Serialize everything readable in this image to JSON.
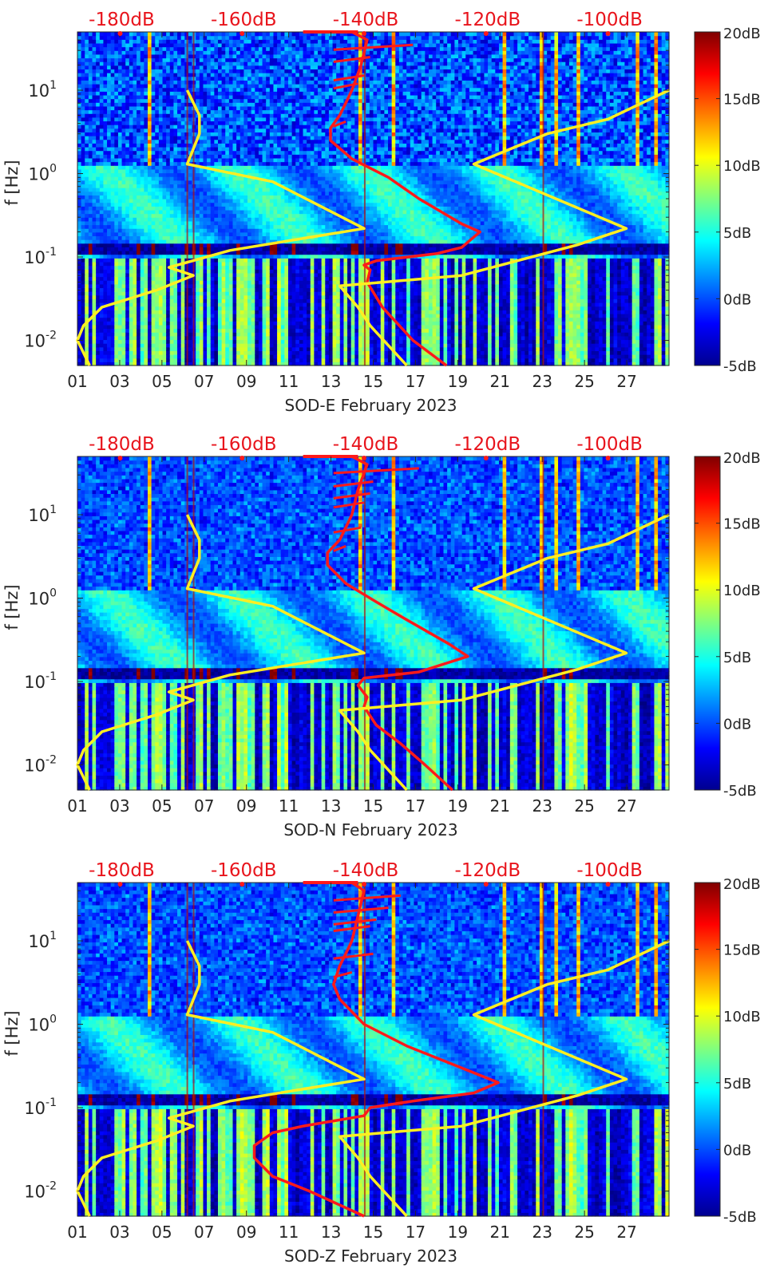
{
  "figure": {
    "colors": {
      "psd_curve": "#ff1a1a",
      "noise_model": "#ffee22",
      "top_axis_text": "#e8141c",
      "axis_text": "#262626"
    },
    "colorbar": {
      "ticks": [
        "20dB",
        "15dB",
        "10dB",
        "5dB",
        "0dB",
        "-5dB"
      ],
      "range": [
        -5,
        20
      ],
      "colormap": "jet"
    }
  },
  "chart_data": [
    {
      "type": "heatmap",
      "xlabel": "SOD-E February 2023",
      "ylabel": "f [Hz]",
      "x_ticks": [
        "01",
        "03",
        "05",
        "07",
        "09",
        "11",
        "13",
        "15",
        "17",
        "19",
        "21",
        "23",
        "25",
        "27"
      ],
      "y_ticks": [
        {
          "base": "10",
          "exp": "1"
        },
        {
          "base": "10",
          "exp": "0"
        },
        {
          "base": "10",
          "exp": "-1"
        },
        {
          "base": "10",
          "exp": "-2"
        }
      ],
      "top_ticks": [
        "-180dB",
        "-160dB",
        "-140dB",
        "-120dB",
        "-100dB"
      ],
      "colorbar_ticks": [
        "20dB",
        "15dB",
        "10dB",
        "5dB",
        "0dB",
        "-5dB"
      ],
      "x_range_days": [
        1,
        29
      ],
      "y_range_hz": [
        0.005,
        50
      ],
      "y_scale": "log",
      "top_range_db": [
        -187,
        -90
      ],
      "colorbar_range_db": [
        -5,
        20
      ],
      "series": [
        {
          "type": "line",
          "role": "psd",
          "color": "#ff1a1a",
          "points_db_hz": [
            [
              -126.5,
              0.005
            ],
            [
              -132,
              0.01
            ],
            [
              -137,
              0.025
            ],
            [
              -139.5,
              0.05
            ],
            [
              -139,
              0.07
            ],
            [
              -140,
              0.08
            ],
            [
              -138,
              0.09
            ],
            [
              -128,
              0.11
            ],
            [
              -124,
              0.13
            ],
            [
              -121,
              0.2
            ],
            [
              -124,
              0.25
            ],
            [
              -131,
              0.5
            ],
            [
              -136,
              0.9
            ],
            [
              -142,
              1.5
            ],
            [
              -145.5,
              2.5
            ],
            [
              -145.5,
              3.5
            ],
            [
              -144,
              5
            ],
            [
              -143,
              7
            ],
            [
              -142,
              10
            ],
            [
              -140.5,
              20
            ],
            [
              -139.5,
              40
            ],
            [
              -142,
              50
            ]
          ],
          "spikes_db_hz": [
            [
              -132,
              35
            ],
            [
              -139,
              25
            ],
            [
              -140,
              15
            ],
            [
              -141,
              12
            ],
            [
              -143,
              4.2
            ]
          ]
        },
        {
          "type": "line",
          "role": "noise-model",
          "color": "#ffee22",
          "points_db_hz": [
            [
              -185,
              0.005
            ],
            [
              -187,
              0.01
            ],
            [
              -186,
              0.015
            ],
            [
              -183,
              0.025
            ],
            [
              -174,
              0.04
            ],
            [
              -168,
              0.06
            ],
            [
              -172,
              0.075
            ],
            [
              -162,
              0.12
            ],
            [
              -140,
              0.22
            ],
            [
              -155,
              0.8
            ],
            [
              -169,
              1.3
            ],
            [
              -167,
              3
            ],
            [
              -167,
              5
            ],
            [
              -169,
              10
            ]
          ],
          "right_points_db_hz": [
            [
              -133,
              0.005
            ],
            [
              -139,
              0.015
            ],
            [
              -141,
              0.025
            ],
            [
              -144,
              0.045
            ],
            [
              -124,
              0.06
            ],
            [
              -105,
              0.14
            ],
            [
              -97,
              0.22
            ],
            [
              -122,
              1.3
            ],
            [
              -110,
              3
            ],
            [
              -100,
              4.5
            ],
            [
              -90,
              10
            ]
          ]
        }
      ]
    },
    {
      "type": "heatmap",
      "xlabel": "SOD-N February 2023",
      "ylabel": "f [Hz]",
      "x_ticks": [
        "01",
        "03",
        "05",
        "07",
        "09",
        "11",
        "13",
        "15",
        "17",
        "19",
        "21",
        "23",
        "25",
        "27"
      ],
      "y_ticks": [
        {
          "base": "10",
          "exp": "1"
        },
        {
          "base": "10",
          "exp": "0"
        },
        {
          "base": "10",
          "exp": "-1"
        },
        {
          "base": "10",
          "exp": "-2"
        }
      ],
      "top_ticks": [
        "-180dB",
        "-160dB",
        "-140dB",
        "-120dB",
        "-100dB"
      ],
      "colorbar_ticks": [
        "20dB",
        "15dB",
        "10dB",
        "5dB",
        "0dB",
        "-5dB"
      ],
      "x_range_days": [
        1,
        29
      ],
      "y_range_hz": [
        0.005,
        50
      ],
      "y_scale": "log",
      "top_range_db": [
        -187,
        -90
      ],
      "colorbar_range_db": [
        -5,
        20
      ],
      "series": [
        {
          "type": "line",
          "role": "psd",
          "color": "#ff1a1a",
          "points_db_hz": [
            [
              -125.5,
              0.005
            ],
            [
              -130,
              0.01
            ],
            [
              -134,
              0.018
            ],
            [
              -138,
              0.03
            ],
            [
              -140,
              0.05
            ],
            [
              -139.5,
              0.065
            ],
            [
              -141,
              0.09
            ],
            [
              -140,
              0.11
            ],
            [
              -131,
              0.13
            ],
            [
              -123,
              0.2
            ],
            [
              -126,
              0.28
            ],
            [
              -133,
              0.55
            ],
            [
              -138,
              0.9
            ],
            [
              -143,
              1.5
            ],
            [
              -146,
              2.5
            ],
            [
              -146,
              3.5
            ],
            [
              -144,
              5
            ],
            [
              -143,
              7
            ],
            [
              -142,
              10
            ],
            [
              -141,
              20
            ],
            [
              -139.5,
              40
            ],
            [
              -142,
              50
            ]
          ],
          "spikes_db_hz": [
            [
              -131,
              36
            ],
            [
              -138.5,
              25
            ],
            [
              -139,
              18
            ],
            [
              -140,
              14
            ],
            [
              -140.5,
              7
            ],
            [
              -143,
              4.2
            ]
          ]
        },
        {
          "type": "line",
          "role": "noise-model",
          "color": "#ffee22",
          "points_db_hz": [
            [
              -185,
              0.005
            ],
            [
              -187,
              0.01
            ],
            [
              -186,
              0.015
            ],
            [
              -183,
              0.025
            ],
            [
              -174,
              0.04
            ],
            [
              -168,
              0.06
            ],
            [
              -172,
              0.075
            ],
            [
              -162,
              0.12
            ],
            [
              -140,
              0.22
            ],
            [
              -155,
              0.8
            ],
            [
              -169,
              1.3
            ],
            [
              -167,
              3
            ],
            [
              -167,
              5
            ],
            [
              -169,
              10
            ]
          ],
          "right_points_db_hz": [
            [
              -133,
              0.005
            ],
            [
              -139,
              0.015
            ],
            [
              -141,
              0.025
            ],
            [
              -144,
              0.045
            ],
            [
              -124,
              0.06
            ],
            [
              -105,
              0.14
            ],
            [
              -97,
              0.22
            ],
            [
              -122,
              1.3
            ],
            [
              -110,
              3
            ],
            [
              -100,
              4.5
            ],
            [
              -90,
              10
            ]
          ]
        }
      ]
    },
    {
      "type": "heatmap",
      "xlabel": "SOD-Z February 2023",
      "ylabel": "f [Hz]",
      "x_ticks": [
        "01",
        "03",
        "05",
        "07",
        "09",
        "11",
        "13",
        "15",
        "17",
        "19",
        "21",
        "23",
        "25",
        "27"
      ],
      "y_ticks": [
        {
          "base": "10",
          "exp": "1"
        },
        {
          "base": "10",
          "exp": "0"
        },
        {
          "base": "10",
          "exp": "-1"
        },
        {
          "base": "10",
          "exp": "-2"
        }
      ],
      "top_ticks": [
        "-180dB",
        "-160dB",
        "-140dB",
        "-120dB",
        "-100dB"
      ],
      "colorbar_ticks": [
        "20dB",
        "15dB",
        "10dB",
        "5dB",
        "0dB",
        "-5dB"
      ],
      "x_range_days": [
        1,
        29
      ],
      "y_range_hz": [
        0.005,
        50
      ],
      "y_scale": "log",
      "top_range_db": [
        -187,
        -90
      ],
      "colorbar_range_db": [
        -5,
        20
      ],
      "series": [
        {
          "type": "line",
          "role": "psd",
          "color": "#ff1a1a",
          "points_db_hz": [
            [
              -140,
              0.005
            ],
            [
              -149,
              0.01
            ],
            [
              -155,
              0.015
            ],
            [
              -158,
              0.025
            ],
            [
              -158,
              0.035
            ],
            [
              -155,
              0.05
            ],
            [
              -150,
              0.06
            ],
            [
              -140,
              0.08
            ],
            [
              -139,
              0.1
            ],
            [
              -132,
              0.12
            ],
            [
              -122,
              0.15
            ],
            [
              -118,
              0.2
            ],
            [
              -124,
              0.3
            ],
            [
              -133,
              0.55
            ],
            [
              -140,
              1
            ],
            [
              -144,
              2
            ],
            [
              -145,
              3
            ],
            [
              -144,
              5
            ],
            [
              -143,
              7
            ],
            [
              -142,
              10
            ],
            [
              -141,
              20
            ],
            [
              -140,
              40
            ],
            [
              -142,
              50
            ]
          ],
          "spikes_db_hz": [
            [
              -134,
              35
            ],
            [
              -136,
              25
            ],
            [
              -138,
              18
            ],
            [
              -139,
              15
            ],
            [
              -138.5,
              7
            ],
            [
              -142,
              4.2
            ]
          ]
        },
        {
          "type": "line",
          "role": "noise-model",
          "color": "#ffee22",
          "points_db_hz": [
            [
              -185,
              0.005
            ],
            [
              -187,
              0.01
            ],
            [
              -186,
              0.015
            ],
            [
              -183,
              0.025
            ],
            [
              -174,
              0.04
            ],
            [
              -168,
              0.06
            ],
            [
              -172,
              0.075
            ],
            [
              -162,
              0.12
            ],
            [
              -140,
              0.22
            ],
            [
              -155,
              0.8
            ],
            [
              -169,
              1.3
            ],
            [
              -167,
              3
            ],
            [
              -167,
              5
            ],
            [
              -169,
              10
            ]
          ],
          "right_points_db_hz": [
            [
              -133,
              0.005
            ],
            [
              -139,
              0.015
            ],
            [
              -141,
              0.025
            ],
            [
              -144,
              0.045
            ],
            [
              -124,
              0.06
            ],
            [
              -105,
              0.14
            ],
            [
              -97,
              0.22
            ],
            [
              -122,
              1.3
            ],
            [
              -110,
              3
            ],
            [
              -100,
              4.5
            ],
            [
              -90,
              10
            ]
          ]
        }
      ]
    }
  ]
}
